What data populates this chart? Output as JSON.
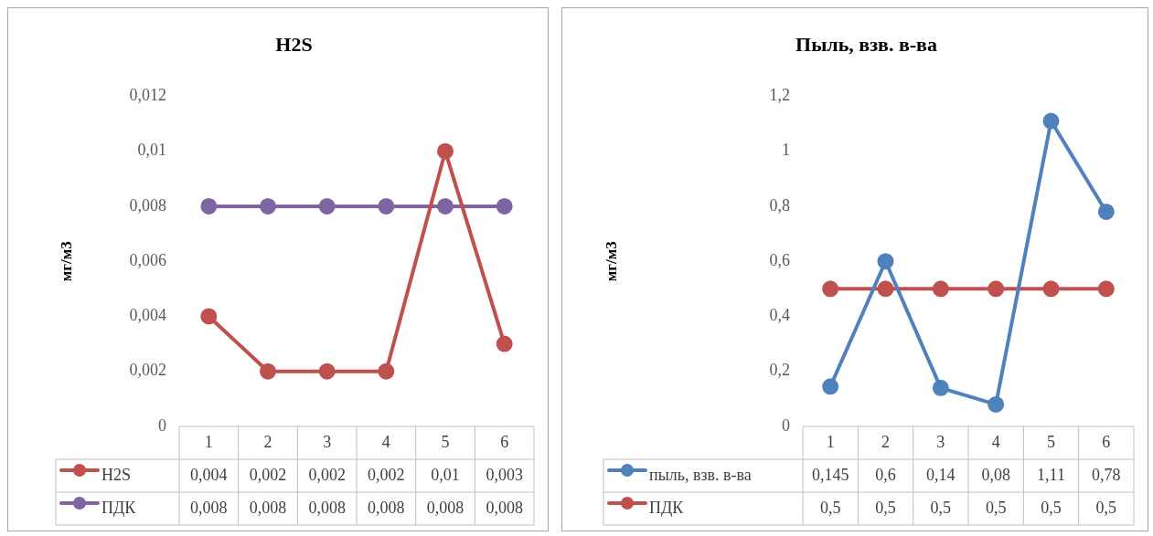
{
  "chart_data": [
    {
      "type": "line",
      "title": "H2S",
      "ylabel": "мг/м3",
      "categories": [
        "1",
        "2",
        "3",
        "4",
        "5",
        "6"
      ],
      "series": [
        {
          "name": "H2S",
          "color": "#c0504d",
          "values": [
            0.004,
            0.002,
            0.002,
            0.002,
            0.01,
            0.003
          ],
          "value_labels": [
            "0,004",
            "0,002",
            "0,002",
            "0,002",
            "0,01",
            "0,003"
          ]
        },
        {
          "name": "ПДК",
          "color": "#8064a2",
          "values": [
            0.008,
            0.008,
            0.008,
            0.008,
            0.008,
            0.008
          ],
          "value_labels": [
            "0,008",
            "0,008",
            "0,008",
            "0,008",
            "0,008",
            "0,008"
          ]
        }
      ],
      "ylim": [
        0,
        0.012
      ],
      "yticks": [
        {
          "value": 0,
          "label": "0"
        },
        {
          "value": 0.002,
          "label": "0,002"
        },
        {
          "value": 0.004,
          "label": "0,004"
        },
        {
          "value": 0.006,
          "label": "0,006"
        },
        {
          "value": 0.008,
          "label": "0,008"
        },
        {
          "value": 0.01,
          "label": "0,01"
        },
        {
          "value": 0.012,
          "label": "0,012"
        }
      ],
      "grid": false,
      "legend": "bottom",
      "marker": "circle"
    },
    {
      "type": "line",
      "title": "Пыль, взв. в-ва",
      "ylabel": "мг/м3",
      "categories": [
        "1",
        "2",
        "3",
        "4",
        "5",
        "6"
      ],
      "series": [
        {
          "name": "пыль, взв. в-ва",
          "color": "#4f81bd",
          "values": [
            0.145,
            0.6,
            0.14,
            0.08,
            1.11,
            0.78
          ],
          "value_labels": [
            "0,145",
            "0,6",
            "0,14",
            "0,08",
            "1,11",
            "0,78"
          ]
        },
        {
          "name": "ПДК",
          "color": "#c0504d",
          "values": [
            0.5,
            0.5,
            0.5,
            0.5,
            0.5,
            0.5
          ],
          "value_labels": [
            "0,5",
            "0,5",
            "0,5",
            "0,5",
            "0,5",
            "0,5"
          ]
        }
      ],
      "ylim": [
        0,
        1.2
      ],
      "yticks": [
        {
          "value": 0,
          "label": "0"
        },
        {
          "value": 0.2,
          "label": "0,2"
        },
        {
          "value": 0.4,
          "label": "0,4"
        },
        {
          "value": 0.6,
          "label": "0,6"
        },
        {
          "value": 0.8,
          "label": "0,8"
        },
        {
          "value": 1,
          "label": "1"
        },
        {
          "value": 1.2,
          "label": "1,2"
        }
      ],
      "grid": false,
      "legend": "bottom",
      "marker": "circle"
    }
  ]
}
